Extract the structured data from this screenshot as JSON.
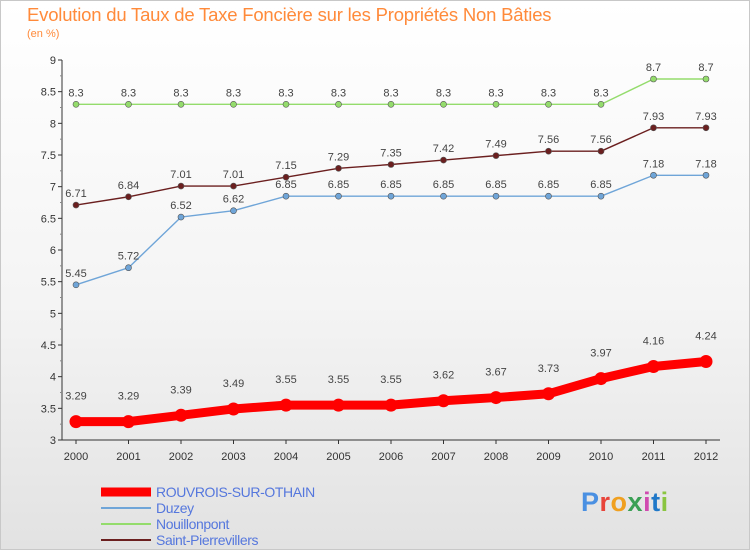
{
  "header": {
    "title": "Evolution du Taux de Taxe Foncière sur les Propriétés Non Bâties",
    "unit": "(en %)"
  },
  "logo": {
    "text": "Proxiti",
    "colors": [
      "#4a90e2",
      "#e8443a",
      "#f0a020",
      "#3aa055",
      "#d04ab0",
      "#1f78c8",
      "#8ac540"
    ]
  },
  "chart_data": {
    "type": "line",
    "title": "Evolution du Taux de Taxe Foncière sur les Propriétés Non Bâties",
    "xlabel": "",
    "ylabel": "(en %)",
    "categories": [
      "2000",
      "2001",
      "2002",
      "2003",
      "2004",
      "2005",
      "2006",
      "2007",
      "2008",
      "2009",
      "2010",
      "2011",
      "2012"
    ],
    "ylim": [
      3,
      9
    ],
    "yticks": [
      "3",
      "3.5",
      "4",
      "4.5",
      "5",
      "5.5",
      "6",
      "6.5",
      "7",
      "7.5",
      "8",
      "8.5",
      "9"
    ],
    "grid": false,
    "legend_position": "bottom-left",
    "series": [
      {
        "name": "ROUVROIS-SUR-OTHAIN",
        "color": "#ff0000",
        "text_color": "#5577dd",
        "values": [
          3.29,
          3.29,
          3.39,
          3.49,
          3.55,
          3.55,
          3.55,
          3.62,
          3.67,
          3.73,
          3.97,
          4.16,
          4.24
        ],
        "labels": [
          "3.29",
          "3.29",
          "3.39",
          "3.49",
          "3.55",
          "3.55",
          "3.55",
          "3.62",
          "3.67",
          "3.73",
          "3.97",
          "4.16",
          "4.24"
        ]
      },
      {
        "name": "Duzey",
        "color": "#6fa5d8",
        "text_color": "#5577dd",
        "values": [
          5.45,
          5.72,
          6.52,
          6.62,
          6.85,
          6.85,
          6.85,
          6.85,
          6.85,
          6.85,
          6.85,
          7.18,
          7.18
        ],
        "labels": [
          "5.45",
          "5.72",
          "6.52",
          "6.62",
          "6.85",
          "6.85",
          "6.85",
          "6.85",
          "6.85",
          "6.85",
          "6.85",
          "7.18",
          "7.18"
        ]
      },
      {
        "name": "Nouillonpont",
        "color": "#94dc6c",
        "text_color": "#5577dd",
        "values": [
          8.3,
          8.3,
          8.3,
          8.3,
          8.3,
          8.3,
          8.3,
          8.3,
          8.3,
          8.3,
          8.3,
          8.7,
          8.7
        ],
        "labels": [
          "8.3",
          "8.3",
          "8.3",
          "8.3",
          "8.3",
          "8.3",
          "8.3",
          "8.3",
          "8.3",
          "8.3",
          "8.3",
          "8.7",
          "8.7"
        ]
      },
      {
        "name": "Saint-Pierrevillers",
        "color": "#6b1f1f",
        "text_color": "#5577dd",
        "values": [
          6.71,
          6.84,
          7.01,
          7.01,
          7.15,
          7.29,
          7.35,
          7.42,
          7.49,
          7.56,
          7.56,
          7.93,
          7.93
        ],
        "labels": [
          "6.71",
          "6.84",
          "7.01",
          "7.01",
          "7.15",
          "7.29",
          "7.35",
          "7.42",
          "7.49",
          "7.56",
          "7.56",
          "7.93",
          "7.93"
        ]
      }
    ]
  }
}
